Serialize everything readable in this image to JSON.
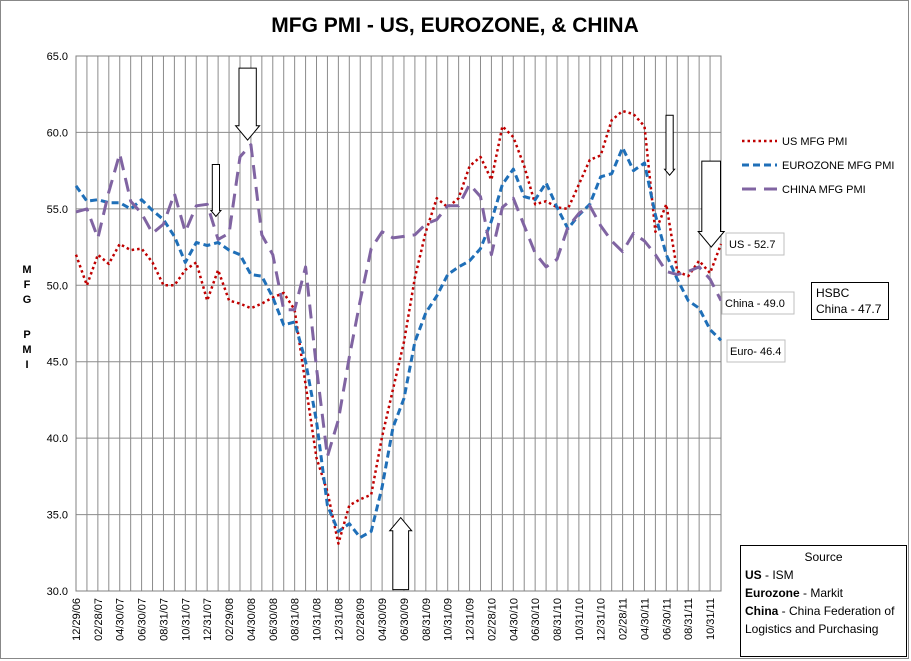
{
  "chart_data": {
    "type": "line",
    "title": "MFG PMI - US, EUROZONE, & CHINA",
    "ylabel": "M F G  P M I",
    "ylim": [
      30,
      65
    ],
    "yticks": [
      "30.0",
      "35.0",
      "40.0",
      "45.0",
      "50.0",
      "55.0",
      "60.0",
      "65.0"
    ],
    "xtick_labels": [
      "12/29/06",
      "02/28/07",
      "04/30/07",
      "06/30/07",
      "08/31/07",
      "10/31/07",
      "12/31/07",
      "02/29/08",
      "04/30/08",
      "06/30/08",
      "08/31/08",
      "10/31/08",
      "12/31/08",
      "02/28/09",
      "04/30/09",
      "06/30/09",
      "08/31/09",
      "10/31/09",
      "12/31/09",
      "02/28/10",
      "04/30/10",
      "06/30/10",
      "08/31/10",
      "10/31/10",
      "12/31/10",
      "02/28/11",
      "04/30/11",
      "06/30/11",
      "08/31/11",
      "10/31/11"
    ],
    "x_months": [
      "2006-12",
      "2007-01",
      "2007-02",
      "2007-03",
      "2007-04",
      "2007-05",
      "2007-06",
      "2007-07",
      "2007-08",
      "2007-09",
      "2007-10",
      "2007-11",
      "2007-12",
      "2008-01",
      "2008-02",
      "2008-03",
      "2008-04",
      "2008-05",
      "2008-06",
      "2008-07",
      "2008-08",
      "2008-09",
      "2008-10",
      "2008-11",
      "2008-12",
      "2009-01",
      "2009-02",
      "2009-03",
      "2009-04",
      "2009-05",
      "2009-06",
      "2009-07",
      "2009-08",
      "2009-09",
      "2009-10",
      "2009-11",
      "2009-12",
      "2010-01",
      "2010-02",
      "2010-03",
      "2010-04",
      "2010-05",
      "2010-06",
      "2010-07",
      "2010-08",
      "2010-09",
      "2010-10",
      "2010-11",
      "2010-12",
      "2011-01",
      "2011-02",
      "2011-03",
      "2011-04",
      "2011-05",
      "2011-06",
      "2011-07",
      "2011-08",
      "2011-09",
      "2011-10",
      "2011-11"
    ],
    "series": [
      {
        "name": "US MFG PMI",
        "color": "#c00000",
        "dash": "dot",
        "values": [
          52.0,
          50.0,
          52.0,
          51.4,
          52.7,
          52.3,
          52.4,
          51.5,
          50.0,
          50.0,
          51.0,
          51.5,
          49.0,
          51.0,
          49.0,
          48.8,
          48.5,
          48.8,
          49.2,
          49.5,
          48.4,
          43.5,
          38.7,
          36.5,
          33.1,
          35.6,
          36.0,
          36.3,
          40.1,
          43.2,
          46.3,
          50.5,
          53.5,
          55.7,
          55.1,
          55.7,
          57.8,
          58.4,
          56.9,
          60.4,
          59.7,
          57.8,
          55.3,
          55.5,
          55.1,
          55.0,
          56.6,
          58.2,
          58.5,
          60.8,
          61.4,
          61.2,
          60.4,
          53.5,
          55.3,
          50.9,
          50.6,
          51.6,
          50.8,
          52.7
        ]
      },
      {
        "name": "EUROZONE MFG PMI",
        "color": "#1f6fb8",
        "dash": "dash",
        "values": [
          56.5,
          55.5,
          55.6,
          55.4,
          55.4,
          55.0,
          55.6,
          54.9,
          54.3,
          53.2,
          51.5,
          52.8,
          52.6,
          52.8,
          52.3,
          52.0,
          50.7,
          50.6,
          49.2,
          47.4,
          47.6,
          45.0,
          41.1,
          35.6,
          33.9,
          34.4,
          33.5,
          33.9,
          36.8,
          40.7,
          42.6,
          46.3,
          48.2,
          49.3,
          50.7,
          51.2,
          51.6,
          52.4,
          54.2,
          56.6,
          57.6,
          55.8,
          55.6,
          56.7,
          55.1,
          53.7,
          54.6,
          55.3,
          57.1,
          57.3,
          59.0,
          57.5,
          58.0,
          54.6,
          52.0,
          50.4,
          49.0,
          48.5,
          47.1,
          46.4
        ]
      },
      {
        "name": "CHINA MFG PMI",
        "color": "#8064a2",
        "dash": "longdash",
        "values": [
          54.8,
          55.0,
          53.1,
          56.1,
          58.6,
          55.5,
          54.7,
          53.4,
          54.0,
          56.0,
          53.5,
          55.2,
          55.3,
          53.0,
          53.4,
          58.4,
          59.2,
          53.3,
          52.0,
          48.4,
          48.4,
          51.2,
          44.6,
          38.8,
          41.2,
          45.3,
          49.0,
          52.4,
          53.5,
          53.1,
          53.2,
          53.3,
          54.0,
          54.3,
          55.2,
          55.2,
          56.6,
          55.8,
          52.0,
          55.1,
          55.7,
          53.9,
          52.1,
          51.2,
          51.7,
          53.8,
          54.7,
          55.2,
          53.9,
          52.9,
          52.2,
          53.4,
          52.9,
          52.0,
          50.9,
          50.7,
          50.9,
          51.2,
          50.4,
          49.0
        ]
      }
    ],
    "annotations": [
      "US - 52.7",
      "China - 49.0",
      "Euro- 46.4",
      "HSBC China - 47.7"
    ],
    "legend_position": "right",
    "grid": true
  },
  "hsbc_box": {
    "text": "HSBC China - 47.7"
  },
  "source_box": {
    "title": "Source",
    "lines": [
      {
        "bold": "US",
        "rest": " - ISM"
      },
      {
        "bold": "Eurozone",
        "rest": " - Markit"
      },
      {
        "bold": "China",
        "rest": " - China Federation of Logistics and Purchasing"
      }
    ]
  }
}
